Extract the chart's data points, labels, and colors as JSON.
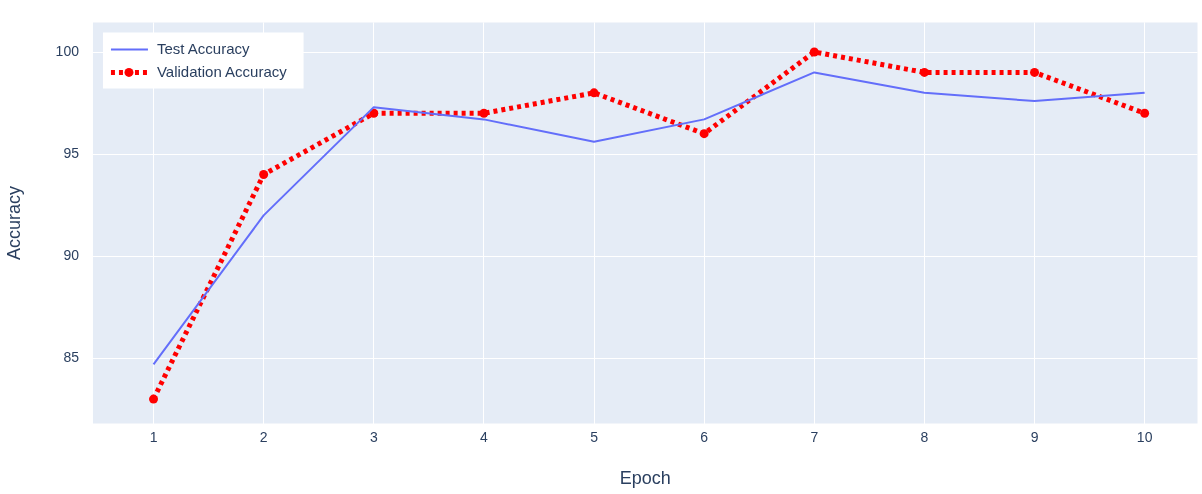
{
  "chart_data": {
    "type": "line",
    "xlabel": "Epoch",
    "ylabel": "Accuracy",
    "x": [
      1,
      2,
      3,
      4,
      5,
      6,
      7,
      8,
      9,
      10
    ],
    "xlim": [
      0.45,
      10.48
    ],
    "xticks": [
      1,
      2,
      3,
      4,
      5,
      6,
      7,
      8,
      9,
      10
    ],
    "ylim": [
      81.8,
      101.45
    ],
    "yticks": [
      85,
      90,
      95,
      100
    ],
    "grid": true,
    "legend": "top left",
    "series": [
      {
        "name": "Test Accuracy",
        "color": "#636efa",
        "marker": "none",
        "line_style": "solid",
        "values": [
          84.7,
          92.0,
          97.3,
          96.7,
          95.6,
          96.7,
          99.0,
          98.0,
          97.6,
          98.0
        ]
      },
      {
        "name": "Validation Accuracy",
        "color": "#ff0000",
        "marker": "circle",
        "line_style": "dotted",
        "values": [
          83,
          94,
          97,
          97,
          98,
          96,
          100,
          99,
          99,
          97
        ]
      }
    ]
  }
}
